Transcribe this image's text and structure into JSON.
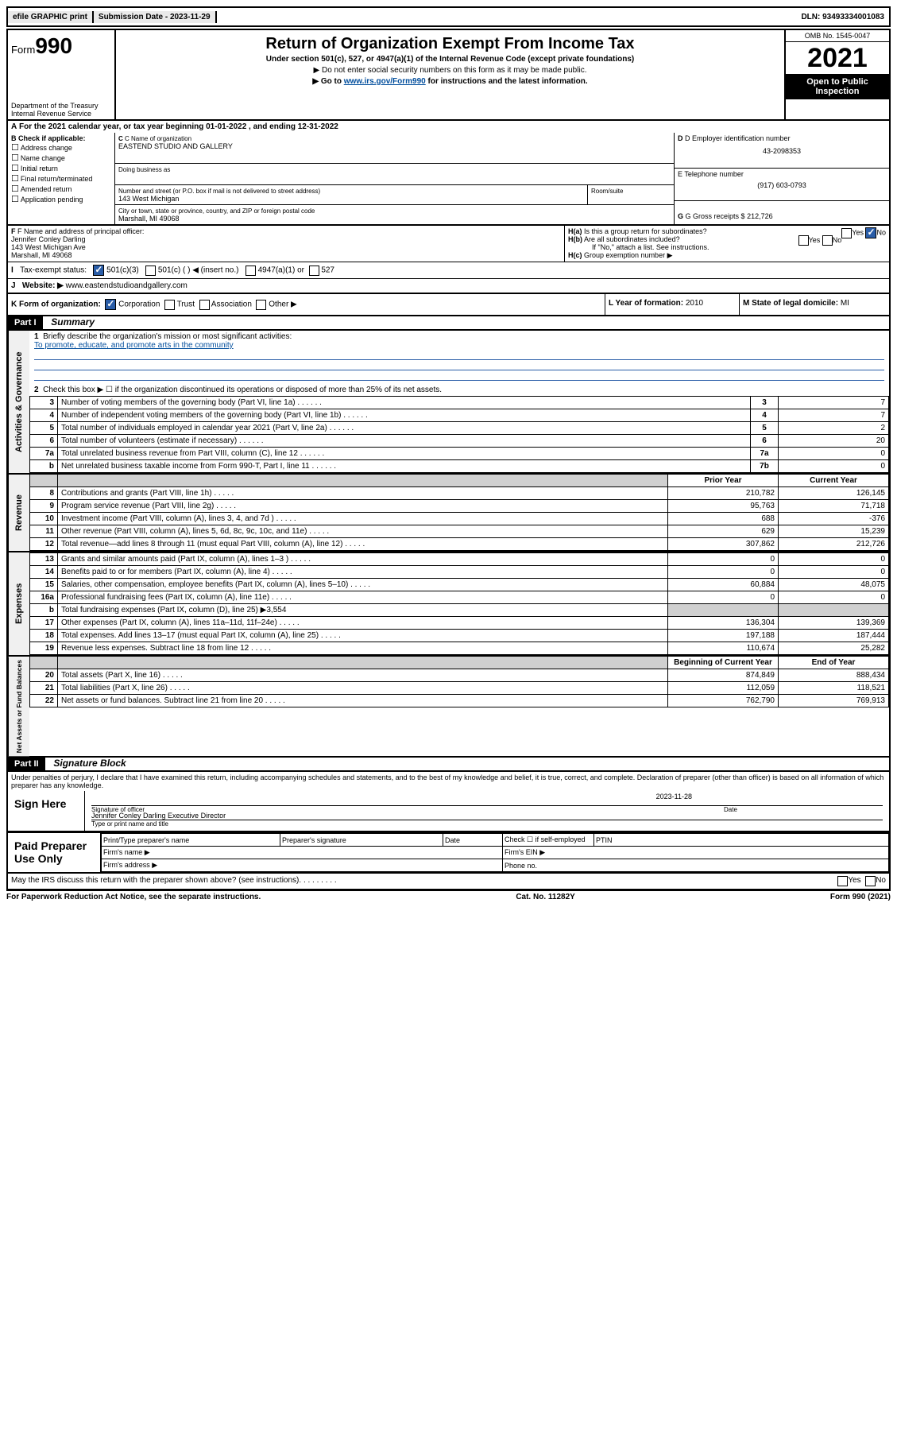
{
  "top": {
    "efile": "efile GRAPHIC print",
    "sub_label": "Submission Date",
    "sub_date": "2023-11-29",
    "dln_label": "DLN:",
    "dln": "93493334001083"
  },
  "header": {
    "form_prefix": "Form",
    "form_num": "990",
    "dept": "Department of the Treasury",
    "irs": "Internal Revenue Service",
    "title": "Return of Organization Exempt From Income Tax",
    "sub1": "Under section 501(c), 527, or 4947(a)(1) of the Internal Revenue Code (except private foundations)",
    "note1": "▶ Do not enter social security numbers on this form as it may be made public.",
    "note2_pre": "▶ Go to ",
    "note2_link": "www.irs.gov/Form990",
    "note2_post": " for instructions and the latest information.",
    "omb": "OMB No. 1545-0047",
    "year": "2021",
    "inspect1": "Open to Public",
    "inspect2": "Inspection"
  },
  "line_a": {
    "text_pre": "For the 2021 calendar year, or tax year beginning ",
    "begin": "01-01-2022",
    "mid": " , and ending ",
    "end": "12-31-2022"
  },
  "col_b": {
    "title": "B Check if applicable:",
    "opts": [
      "Address change",
      "Name change",
      "Initial return",
      "Final return/terminated",
      "Amended return",
      "Application pending"
    ]
  },
  "org": {
    "c_label": "C Name of organization",
    "name": "EASTEND STUDIO AND GALLERY",
    "dba_label": "Doing business as",
    "dba": "",
    "addr_label": "Number and street (or P.O. box if mail is not delivered to street address)",
    "room_label": "Room/suite",
    "addr": "143 West Michigan",
    "city_label": "City or town, state or province, country, and ZIP or foreign postal code",
    "city": "Marshall, MI  49068"
  },
  "right": {
    "d_label": "D Employer identification number",
    "ein": "43-2098353",
    "e_label": "E Telephone number",
    "phone": "(917) 603-0793",
    "g_label": "G Gross receipts $",
    "gross": "212,726"
  },
  "fgh": {
    "f_label": "F Name and address of principal officer:",
    "f_name": "Jennifer Conley Darling",
    "f_addr1": "143 West Michigan Ave",
    "f_addr2": "Marshall, MI  49068",
    "ha": "Is this a group return for subordinates?",
    "hb": "Are all subordinates included?",
    "hb_note": "If \"No,\" attach a list. See instructions.",
    "hc": "Group exemption number ▶"
  },
  "i": {
    "label": "Tax-exempt status:",
    "o1": "501(c)(3)",
    "o2": "501(c) (  ) ◀ (insert no.)",
    "o3": "4947(a)(1) or",
    "o4": "527"
  },
  "j": {
    "label": "Website: ▶",
    "val": "www.eastendstudioandgallery.com"
  },
  "k": {
    "label": "K Form of organization:",
    "o1": "Corporation",
    "o2": "Trust",
    "o3": "Association",
    "o4": "Other ▶"
  },
  "lm": {
    "l_label": "L Year of formation:",
    "l_val": "2010",
    "m_label": "M State of legal domicile:",
    "m_val": "MI"
  },
  "part1": {
    "header": "Part I",
    "title": "Summary",
    "q1": "Briefly describe the organization's mission or most significant activities:",
    "mission": "To promote, educate, and promote arts in the community",
    "q2": "Check this box ▶ ☐  if the organization discontinued its operations or disposed of more than 25% of its net assets.",
    "rows_gov": [
      {
        "n": "3",
        "d": "Number of voting members of the governing body (Part VI, line 1a)",
        "b": "3",
        "v": "7"
      },
      {
        "n": "4",
        "d": "Number of independent voting members of the governing body (Part VI, line 1b)",
        "b": "4",
        "v": "7"
      },
      {
        "n": "5",
        "d": "Total number of individuals employed in calendar year 2021 (Part V, line 2a)",
        "b": "5",
        "v": "2"
      },
      {
        "n": "6",
        "d": "Total number of volunteers (estimate if necessary)",
        "b": "6",
        "v": "20"
      },
      {
        "n": "7a",
        "d": "Total unrelated business revenue from Part VIII, column (C), line 12",
        "b": "7a",
        "v": "0"
      },
      {
        "n": "b",
        "d": "Net unrelated business taxable income from Form 990-T, Part I, line 11",
        "b": "7b",
        "v": "0"
      }
    ],
    "col_prior": "Prior Year",
    "col_curr": "Current Year",
    "rows_rev": [
      {
        "n": "8",
        "d": "Contributions and grants (Part VIII, line 1h)",
        "p": "210,782",
        "c": "126,145"
      },
      {
        "n": "9",
        "d": "Program service revenue (Part VIII, line 2g)",
        "p": "95,763",
        "c": "71,718"
      },
      {
        "n": "10",
        "d": "Investment income (Part VIII, column (A), lines 3, 4, and 7d )",
        "p": "688",
        "c": "-376"
      },
      {
        "n": "11",
        "d": "Other revenue (Part VIII, column (A), lines 5, 6d, 8c, 9c, 10c, and 11e)",
        "p": "629",
        "c": "15,239"
      },
      {
        "n": "12",
        "d": "Total revenue—add lines 8 through 11 (must equal Part VIII, column (A), line 12)",
        "p": "307,862",
        "c": "212,726"
      }
    ],
    "rows_exp": [
      {
        "n": "13",
        "d": "Grants and similar amounts paid (Part IX, column (A), lines 1–3 )",
        "p": "0",
        "c": "0"
      },
      {
        "n": "14",
        "d": "Benefits paid to or for members (Part IX, column (A), line 4)",
        "p": "0",
        "c": "0"
      },
      {
        "n": "15",
        "d": "Salaries, other compensation, employee benefits (Part IX, column (A), lines 5–10)",
        "p": "60,884",
        "c": "48,075"
      },
      {
        "n": "16a",
        "d": "Professional fundraising fees (Part IX, column (A), line 11e)",
        "p": "0",
        "c": "0"
      },
      {
        "n": "b",
        "d": "Total fundraising expenses (Part IX, column (D), line 25) ▶3,554",
        "p": "",
        "c": "",
        "shade": true
      },
      {
        "n": "17",
        "d": "Other expenses (Part IX, column (A), lines 11a–11d, 11f–24e)",
        "p": "136,304",
        "c": "139,369"
      },
      {
        "n": "18",
        "d": "Total expenses. Add lines 13–17 (must equal Part IX, column (A), line 25)",
        "p": "197,188",
        "c": "187,444"
      },
      {
        "n": "19",
        "d": "Revenue less expenses. Subtract line 18 from line 12",
        "p": "110,674",
        "c": "25,282"
      }
    ],
    "col_begin": "Beginning of Current Year",
    "col_end": "End of Year",
    "rows_net": [
      {
        "n": "20",
        "d": "Total assets (Part X, line 16)",
        "p": "874,849",
        "c": "888,434"
      },
      {
        "n": "21",
        "d": "Total liabilities (Part X, line 26)",
        "p": "112,059",
        "c": "118,521"
      },
      {
        "n": "22",
        "d": "Net assets or fund balances. Subtract line 21 from line 20",
        "p": "762,790",
        "c": "769,913"
      }
    ],
    "vert_gov": "Activities & Governance",
    "vert_rev": "Revenue",
    "vert_exp": "Expenses",
    "vert_net": "Net Assets or Fund Balances"
  },
  "part2": {
    "header": "Part II",
    "title": "Signature Block",
    "decl": "Under penalties of perjury, I declare that I have examined this return, including accompanying schedules and statements, and to the best of my knowledge and belief, it is true, correct, and complete. Declaration of preparer (other than officer) is based on all information of which preparer has any knowledge.",
    "sign_here": "Sign Here",
    "sig_officer": "Signature of officer",
    "sig_date_label": "Date",
    "sig_date": "2023-11-28",
    "sig_name": "Jennifer Conley Darling  Executive Director",
    "sig_name_label": "Type or print name and title",
    "paid": "Paid Preparer Use Only",
    "pp_name": "Print/Type preparer's name",
    "pp_sig": "Preparer's signature",
    "pp_date": "Date",
    "pp_check": "Check ☐ if self-employed",
    "pp_ptin": "PTIN",
    "firm_name": "Firm's name  ▶",
    "firm_ein": "Firm's EIN ▶",
    "firm_addr": "Firm's address ▶",
    "firm_phone": "Phone no.",
    "discuss": "May the IRS discuss this return with the preparer shown above? (see instructions)",
    "yes": "Yes",
    "no": "No"
  },
  "footer": {
    "left": "For Paperwork Reduction Act Notice, see the separate instructions.",
    "mid": "Cat. No. 11282Y",
    "right": "Form 990 (2021)"
  }
}
